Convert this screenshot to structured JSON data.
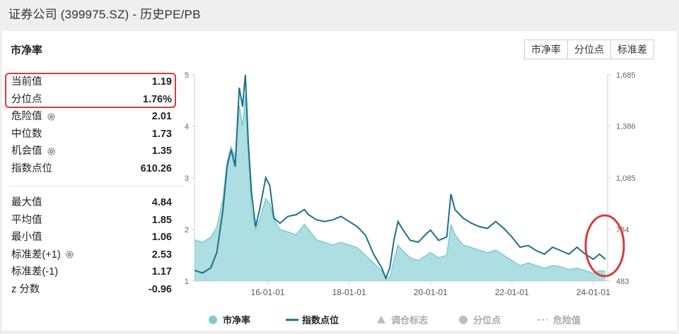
{
  "header": {
    "title": "证券公司 (399975.SZ) - 历史PE/PB"
  },
  "section": {
    "title": "市净率"
  },
  "tabs": [
    {
      "label": "市净率"
    },
    {
      "label": "分位点"
    },
    {
      "label": "标准差"
    }
  ],
  "stats": {
    "current": {
      "label": "当前值",
      "value": "1.19"
    },
    "percentile": {
      "label": "分位点",
      "value": "1.76%"
    },
    "danger": {
      "label": "危险值",
      "value": "2.01"
    },
    "median": {
      "label": "中位数",
      "value": "1.73"
    },
    "opportunity": {
      "label": "机会值",
      "value": "1.35"
    },
    "index_points": {
      "label": "指数点位",
      "value": "610.26"
    },
    "max": {
      "label": "最大值",
      "value": "4.84"
    },
    "mean": {
      "label": "平均值",
      "value": "1.85"
    },
    "min": {
      "label": "最小值",
      "value": "1.06"
    },
    "std_plus1": {
      "label": "标准差(+1)",
      "value": "2.53"
    },
    "std_minus1": {
      "label": "标准差(-1)",
      "value": "1.17"
    },
    "zscore": {
      "label": "z 分数",
      "value": "-0.96"
    }
  },
  "colors": {
    "pb_fill": "#9fd8dc",
    "pb_line": "#7ecdd2",
    "index_line": "#1f6f8b",
    "highlight": "#d63c3c",
    "legend_gray": "#bdbdbd"
  },
  "chart_data": {
    "type": "area",
    "x_ticks": [
      "16-01-01",
      "18-01-01",
      "20-01-01",
      "22-01-01",
      "24-01-01"
    ],
    "x_tick_years": [
      2016,
      2018,
      2020,
      2022,
      2024
    ],
    "xlim": [
      2014.2,
      2024.35
    ],
    "y_left": {
      "ticks": [
        "1",
        "2",
        "3",
        "4",
        "5"
      ],
      "lim": [
        1,
        5
      ]
    },
    "y_right": {
      "ticks": [
        "483",
        "784",
        "1,085",
        "1,386",
        "1,685"
      ],
      "lim": [
        483,
        1685
      ]
    },
    "series": [
      {
        "name": "市净率",
        "axis": "left",
        "points": [
          [
            2014.2,
            1.8
          ],
          [
            2014.4,
            1.75
          ],
          [
            2014.6,
            1.85
          ],
          [
            2014.75,
            2.05
          ],
          [
            2014.9,
            2.6
          ],
          [
            2015.0,
            3.3
          ],
          [
            2015.1,
            3.6
          ],
          [
            2015.2,
            3.4
          ],
          [
            2015.3,
            4.4
          ],
          [
            2015.38,
            4.0
          ],
          [
            2015.45,
            4.6
          ],
          [
            2015.52,
            3.5
          ],
          [
            2015.6,
            2.4
          ],
          [
            2015.7,
            2.0
          ],
          [
            2015.8,
            2.2
          ],
          [
            2015.95,
            2.6
          ],
          [
            2016.05,
            2.5
          ],
          [
            2016.15,
            2.2
          ],
          [
            2016.3,
            2.0
          ],
          [
            2016.5,
            1.95
          ],
          [
            2016.7,
            1.9
          ],
          [
            2016.9,
            2.1
          ],
          [
            2017.0,
            2.0
          ],
          [
            2017.2,
            1.8
          ],
          [
            2017.4,
            1.75
          ],
          [
            2017.6,
            1.7
          ],
          [
            2017.8,
            1.75
          ],
          [
            2018.0,
            1.7
          ],
          [
            2018.2,
            1.65
          ],
          [
            2018.4,
            1.5
          ],
          [
            2018.6,
            1.35
          ],
          [
            2018.8,
            1.2
          ],
          [
            2018.9,
            1.08
          ],
          [
            2019.0,
            1.06
          ],
          [
            2019.1,
            1.4
          ],
          [
            2019.2,
            1.7
          ],
          [
            2019.3,
            1.6
          ],
          [
            2019.5,
            1.45
          ],
          [
            2019.7,
            1.4
          ],
          [
            2019.9,
            1.5
          ],
          [
            2020.0,
            1.55
          ],
          [
            2020.2,
            1.45
          ],
          [
            2020.4,
            1.5
          ],
          [
            2020.5,
            2.1
          ],
          [
            2020.6,
            1.9
          ],
          [
            2020.8,
            1.7
          ],
          [
            2021.0,
            1.65
          ],
          [
            2021.2,
            1.6
          ],
          [
            2021.4,
            1.55
          ],
          [
            2021.6,
            1.6
          ],
          [
            2021.8,
            1.5
          ],
          [
            2022.0,
            1.4
          ],
          [
            2022.2,
            1.3
          ],
          [
            2022.4,
            1.35
          ],
          [
            2022.6,
            1.3
          ],
          [
            2022.8,
            1.25
          ],
          [
            2023.0,
            1.3
          ],
          [
            2023.2,
            1.28
          ],
          [
            2023.4,
            1.22
          ],
          [
            2023.6,
            1.25
          ],
          [
            2023.8,
            1.2
          ],
          [
            2024.0,
            1.15
          ],
          [
            2024.15,
            1.2
          ],
          [
            2024.3,
            1.19
          ]
        ]
      },
      {
        "name": "指数点位",
        "axis": "right",
        "points": [
          [
            2014.2,
            545
          ],
          [
            2014.4,
            530
          ],
          [
            2014.6,
            560
          ],
          [
            2014.75,
            650
          ],
          [
            2014.9,
            900
          ],
          [
            2015.0,
            1150
          ],
          [
            2015.1,
            1250
          ],
          [
            2015.2,
            1150
          ],
          [
            2015.3,
            1610
          ],
          [
            2015.38,
            1500
          ],
          [
            2015.45,
            1685
          ],
          [
            2015.52,
            1300
          ],
          [
            2015.6,
            1000
          ],
          [
            2015.7,
            800
          ],
          [
            2015.8,
            900
          ],
          [
            2015.95,
            1085
          ],
          [
            2016.05,
            1040
          ],
          [
            2016.15,
            850
          ],
          [
            2016.3,
            820
          ],
          [
            2016.5,
            860
          ],
          [
            2016.7,
            870
          ],
          [
            2016.9,
            900
          ],
          [
            2017.0,
            870
          ],
          [
            2017.2,
            840
          ],
          [
            2017.4,
            830
          ],
          [
            2017.6,
            840
          ],
          [
            2017.8,
            860
          ],
          [
            2018.0,
            830
          ],
          [
            2018.2,
            800
          ],
          [
            2018.4,
            750
          ],
          [
            2018.6,
            640
          ],
          [
            2018.8,
            560
          ],
          [
            2018.9,
            500
          ],
          [
            2019.0,
            560
          ],
          [
            2019.1,
            720
          ],
          [
            2019.2,
            830
          ],
          [
            2019.3,
            790
          ],
          [
            2019.5,
            720
          ],
          [
            2019.7,
            710
          ],
          [
            2019.9,
            760
          ],
          [
            2020.0,
            780
          ],
          [
            2020.2,
            720
          ],
          [
            2020.4,
            740
          ],
          [
            2020.5,
            990
          ],
          [
            2020.6,
            900
          ],
          [
            2020.8,
            850
          ],
          [
            2021.0,
            820
          ],
          [
            2021.2,
            800
          ],
          [
            2021.4,
            790
          ],
          [
            2021.6,
            830
          ],
          [
            2021.8,
            790
          ],
          [
            2022.0,
            740
          ],
          [
            2022.2,
            680
          ],
          [
            2022.4,
            690
          ],
          [
            2022.6,
            660
          ],
          [
            2022.8,
            640
          ],
          [
            2023.0,
            680
          ],
          [
            2023.2,
            660
          ],
          [
            2023.4,
            640
          ],
          [
            2023.6,
            680
          ],
          [
            2023.8,
            640
          ],
          [
            2024.0,
            610
          ],
          [
            2024.15,
            640
          ],
          [
            2024.3,
            610
          ]
        ]
      }
    ],
    "legend": [
      {
        "label": "市净率",
        "marker": "circle",
        "color": "#7ecdd2"
      },
      {
        "label": "指数点位",
        "marker": "line",
        "color": "#1f6f8b"
      },
      {
        "label": "调仓标志",
        "marker": "triangle",
        "color": "#bdbdbd"
      },
      {
        "label": "分位点",
        "marker": "circle",
        "color": "#bdbdbd"
      },
      {
        "label": "危险值",
        "marker": "dash",
        "color": "#bdbdbd"
      }
    ]
  }
}
